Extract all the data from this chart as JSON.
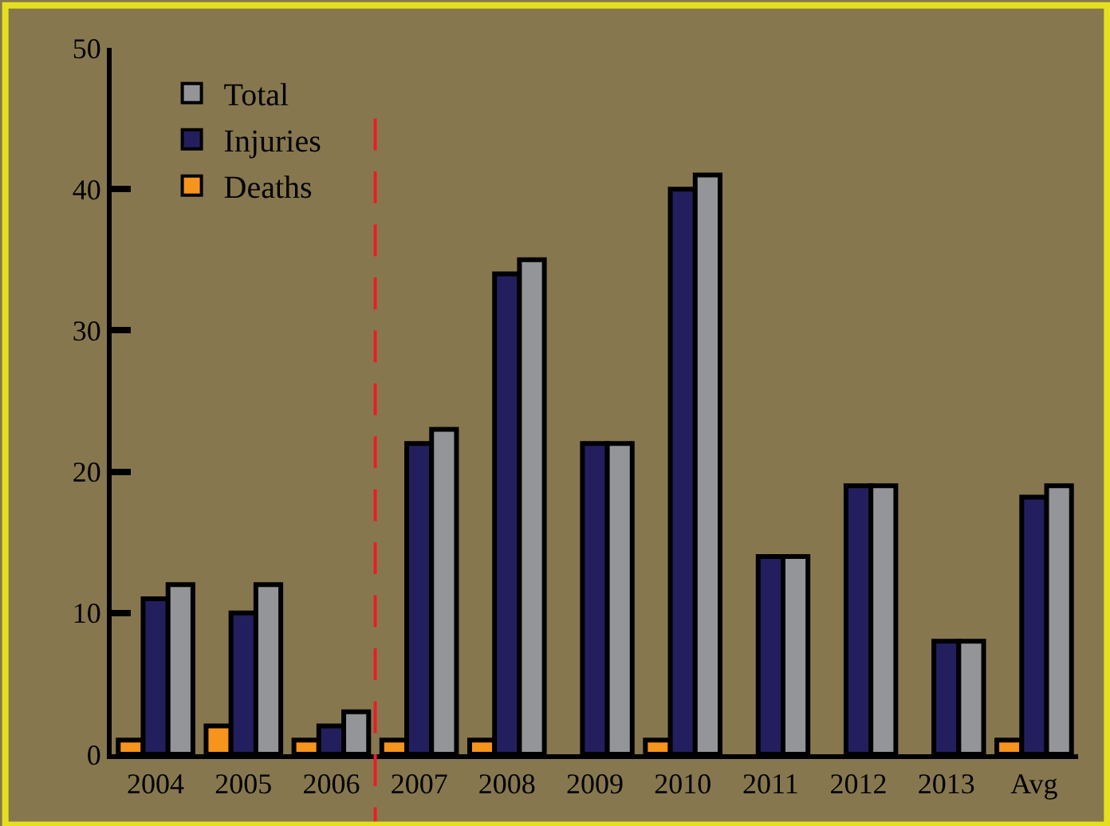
{
  "chart_data": {
    "type": "bar",
    "categories": [
      "2004",
      "2005",
      "2006",
      "2007",
      "2008",
      "2009",
      "2010",
      "2011",
      "2012",
      "2013",
      "Avg"
    ],
    "series": [
      {
        "name": "Deaths",
        "color": "#f7941d",
        "values": [
          1,
          2,
          1,
          1,
          1,
          0,
          1,
          0,
          0,
          0,
          1
        ]
      },
      {
        "name": "Injuries",
        "color": "#231f5f",
        "values": [
          11,
          10,
          2,
          22,
          34,
          22,
          40,
          14,
          19,
          8,
          18.2
        ]
      },
      {
        "name": "Total",
        "color": "#939598",
        "values": [
          12,
          12,
          3,
          23,
          35,
          22,
          41,
          14,
          19,
          8,
          19
        ]
      }
    ],
    "ylim": [
      0,
      50
    ],
    "yticks": [
      0,
      10,
      20,
      30,
      40,
      50
    ],
    "grid": false,
    "legend": "top left"
  }
}
